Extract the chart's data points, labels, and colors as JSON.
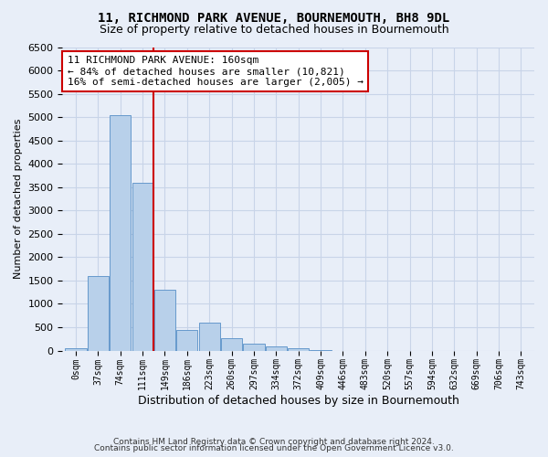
{
  "title": "11, RICHMOND PARK AVENUE, BOURNEMOUTH, BH8 9DL",
  "subtitle": "Size of property relative to detached houses in Bournemouth",
  "xlabel": "Distribution of detached houses by size in Bournemouth",
  "ylabel": "Number of detached properties",
  "footer_line1": "Contains HM Land Registry data © Crown copyright and database right 2024.",
  "footer_line2": "Contains public sector information licensed under the Open Government Licence v3.0.",
  "bar_labels": [
    "0sqm",
    "37sqm",
    "74sqm",
    "111sqm",
    "149sqm",
    "186sqm",
    "223sqm",
    "260sqm",
    "297sqm",
    "334sqm",
    "372sqm",
    "409sqm",
    "446sqm",
    "483sqm",
    "520sqm",
    "557sqm",
    "594sqm",
    "632sqm",
    "669sqm",
    "706sqm",
    "743sqm"
  ],
  "bar_values": [
    50,
    1600,
    5050,
    3600,
    1300,
    440,
    600,
    270,
    150,
    85,
    50,
    20,
    0,
    0,
    0,
    0,
    0,
    0,
    0,
    0,
    0
  ],
  "bar_color": "#b8d0ea",
  "bar_edge_color": "#6699cc",
  "vline_x": 3.5,
  "annotation_text": "11 RICHMOND PARK AVENUE: 160sqm\n← 84% of detached houses are smaller (10,821)\n16% of semi-detached houses are larger (2,005) →",
  "annotation_box_color": "#ffffff",
  "annotation_box_edge": "#cc0000",
  "vline_color": "#cc0000",
  "ylim": [
    0,
    6500
  ],
  "yticks": [
    0,
    500,
    1000,
    1500,
    2000,
    2500,
    3000,
    3500,
    4000,
    4500,
    5000,
    5500,
    6000,
    6500
  ],
  "grid_color": "#c8d4e8",
  "background_color": "#e8eef8",
  "title_fontsize": 10,
  "subtitle_fontsize": 9,
  "ylabel_fontsize": 8,
  "xlabel_fontsize": 9
}
